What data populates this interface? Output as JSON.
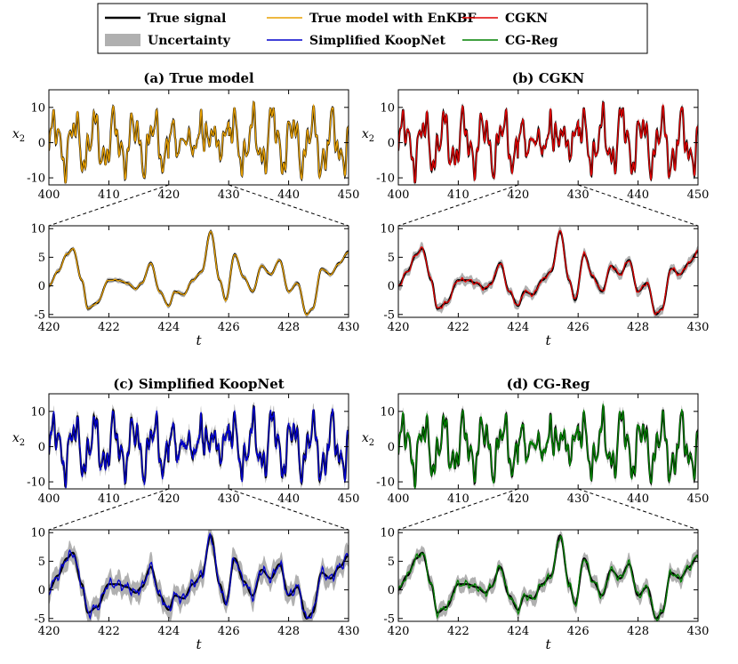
{
  "legend": {
    "entries": [
      {
        "label": "True signal",
        "color": "#000000",
        "kind": "line"
      },
      {
        "label": "Uncertainty",
        "color": "#b0b0b0",
        "kind": "patch"
      },
      {
        "label": "True model with EnKBF",
        "color": "#e8a000",
        "kind": "line"
      },
      {
        "label": "Simplified KoopNet",
        "color": "#0000cc",
        "kind": "line"
      },
      {
        "label": "CGKN",
        "color": "#e00000",
        "kind": "line"
      },
      {
        "label": "CG-Reg",
        "color": "#008000",
        "kind": "line"
      }
    ]
  },
  "colors": {
    "truth": "#000000",
    "uncertainty": "#b0b0b0"
  },
  "chart_data": [
    {
      "type": "line",
      "panel": "a",
      "title": "(a) True model",
      "ylabel": "x2",
      "model_color": "#e8a000",
      "top": {
        "xlim": [
          400,
          450
        ],
        "ylim": [
          -12,
          15
        ],
        "xticks": [
          400,
          410,
          420,
          430,
          440,
          450
        ],
        "yticks": [
          -10,
          0,
          10
        ],
        "xlabel": ""
      },
      "zoom": {
        "xlim": [
          420,
          430
        ],
        "ylim": [
          -5.5,
          10.5
        ],
        "xticks": [
          420,
          422,
          424,
          426,
          428,
          430
        ],
        "yticks": [
          -5,
          0,
          5,
          10
        ],
        "xlabel": "t"
      },
      "uncertainty_halfwidth": 0.3,
      "model_error": 0.15
    },
    {
      "type": "line",
      "panel": "b",
      "title": "(b) CGKN",
      "ylabel": "x2",
      "model_color": "#e00000",
      "top": {
        "xlim": [
          400,
          450
        ],
        "ylim": [
          -12,
          15
        ],
        "xticks": [
          400,
          410,
          420,
          430,
          440,
          450
        ],
        "yticks": [
          -10,
          0,
          10
        ],
        "xlabel": ""
      },
      "zoom": {
        "xlim": [
          420,
          430
        ],
        "ylim": [
          -5.5,
          10.5
        ],
        "xticks": [
          420,
          422,
          424,
          426,
          428,
          430
        ],
        "yticks": [
          -5,
          0,
          5,
          10
        ],
        "xlabel": "t"
      },
      "uncertainty_halfwidth": 0.6,
      "model_error": 0.45
    },
    {
      "type": "line",
      "panel": "c",
      "title": "(c) Simplified KoopNet",
      "ylabel": "x2",
      "model_color": "#0000cc",
      "top": {
        "xlim": [
          400,
          450
        ],
        "ylim": [
          -12,
          15
        ],
        "xticks": [
          400,
          410,
          420,
          430,
          440,
          450
        ],
        "yticks": [
          -10,
          0,
          10
        ],
        "xlabel": ""
      },
      "zoom": {
        "xlim": [
          420,
          430
        ],
        "ylim": [
          -5.5,
          10.5
        ],
        "xticks": [
          420,
          422,
          424,
          426,
          428,
          430
        ],
        "yticks": [
          -5,
          0,
          5,
          10
        ],
        "xlabel": "t"
      },
      "uncertainty_halfwidth": 1.3,
      "model_error": 1.1
    },
    {
      "type": "line",
      "panel": "d",
      "title": "(d) CG-Reg",
      "ylabel": "x2",
      "model_color": "#008000",
      "top": {
        "xlim": [
          400,
          450
        ],
        "ylim": [
          -12,
          15
        ],
        "xticks": [
          400,
          410,
          420,
          430,
          440,
          450
        ],
        "yticks": [
          -10,
          0,
          10
        ],
        "xlabel": ""
      },
      "zoom": {
        "xlim": [
          420,
          430
        ],
        "ylim": [
          -5.5,
          10.5
        ],
        "xticks": [
          420,
          422,
          424,
          426,
          428,
          430
        ],
        "yticks": [
          -5,
          0,
          5,
          10
        ],
        "xlabel": "t"
      },
      "uncertainty_halfwidth": 0.9,
      "model_error": 0.8
    }
  ],
  "zoom_truth_keypoints": {
    "t": [
      420.0,
      420.3,
      420.6,
      420.8,
      421.1,
      421.3,
      421.6,
      422.0,
      422.3,
      422.6,
      422.9,
      423.1,
      423.4,
      423.7,
      424.0,
      424.2,
      424.5,
      424.8,
      425.1,
      425.4,
      425.7,
      425.9,
      426.2,
      426.5,
      426.8,
      427.1,
      427.4,
      427.7,
      428.0,
      428.3,
      428.6,
      428.8,
      429.1,
      429.4,
      429.7,
      430.0
    ],
    "x": [
      0.0,
      2.5,
      5.5,
      6.5,
      1.0,
      -4.0,
      -3.0,
      1.0,
      1.0,
      0.5,
      -0.5,
      0.5,
      4.0,
      -1.0,
      -3.5,
      -1.0,
      -1.5,
      1.0,
      2.5,
      9.5,
      1.0,
      -2.5,
      5.5,
      1.5,
      -1.0,
      3.5,
      2.0,
      4.5,
      -1.0,
      0.5,
      -5.0,
      -4.0,
      3.0,
      2.0,
      4.0,
      6.0
    ]
  }
}
